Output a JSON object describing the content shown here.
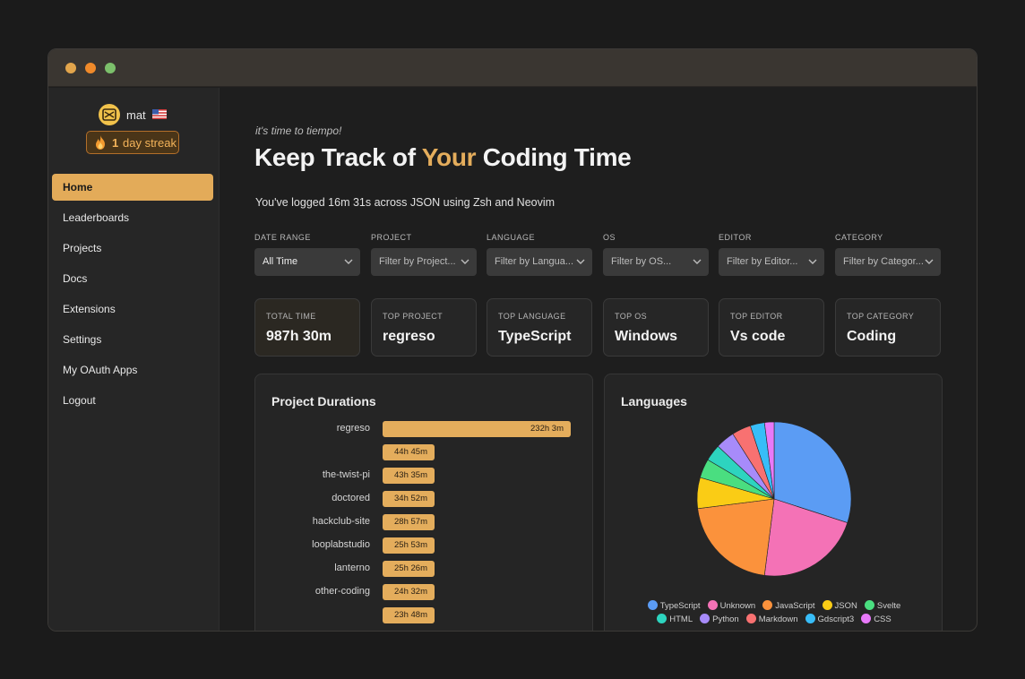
{
  "window": {
    "controls": [
      "close",
      "minimize",
      "maximize"
    ]
  },
  "sidebar": {
    "user": {
      "name": "mat",
      "flag": "us-flag-icon"
    },
    "streak": {
      "count": "1",
      "text": "day streak"
    },
    "nav": [
      {
        "label": "Home",
        "active": true
      },
      {
        "label": "Leaderboards"
      },
      {
        "label": "Projects"
      },
      {
        "label": "Docs"
      },
      {
        "label": "Extensions"
      },
      {
        "label": "Settings"
      },
      {
        "label": "My OAuth Apps"
      },
      {
        "label": "Logout"
      }
    ]
  },
  "main": {
    "tagline": "it's time to tiempo!",
    "headline": {
      "before": "Keep Track of",
      "accent": "Your",
      "after": "Coding Time"
    },
    "summary": "You've logged 16m 31s across JSON using Zsh and Neovim",
    "filters": [
      {
        "label": "DATE RANGE",
        "value": "All Time"
      },
      {
        "label": "PROJECT",
        "placeholder": "Filter by Project..."
      },
      {
        "label": "LANGUAGE",
        "placeholder": "Filter by Langua..."
      },
      {
        "label": "OS",
        "placeholder": "Filter by OS..."
      },
      {
        "label": "EDITOR",
        "placeholder": "Filter by Editor..."
      },
      {
        "label": "CATEGORY",
        "placeholder": "Filter by Categor..."
      }
    ],
    "stats": [
      {
        "label": "TOTAL TIME",
        "value": "987h 30m"
      },
      {
        "label": "TOP PROJECT",
        "value": "regreso"
      },
      {
        "label": "TOP LANGUAGE",
        "value": "TypeScript"
      },
      {
        "label": "TOP OS",
        "value": "Windows"
      },
      {
        "label": "TOP EDITOR",
        "value": "Vs code"
      },
      {
        "label": "TOP CATEGORY",
        "value": "Coding"
      }
    ]
  },
  "chart_data": [
    {
      "type": "bar",
      "title": "Project Durations",
      "orientation": "horizontal",
      "categories": [
        "regreso",
        "",
        "the-twist-pi",
        "doctored",
        "hackclub-site",
        "looplabstudio",
        "lanterno",
        "other-coding",
        ""
      ],
      "values": [
        232.05,
        44.75,
        43.583,
        34.867,
        28.95,
        25.883,
        25.433,
        24.533,
        23.8
      ],
      "value_labels": [
        "232h 3m",
        "44h 45m",
        "43h 35m",
        "34h 52m",
        "28h 57m",
        "25h 53m",
        "25h 26m",
        "24h 32m",
        "23h 48m"
      ],
      "units": "hours",
      "color": "#e4ad5c"
    },
    {
      "type": "pie",
      "title": "Languages",
      "legend_placement": "bottom",
      "series": [
        {
          "name": "TypeScript",
          "value": 30.0,
          "color": "#5b9cf4"
        },
        {
          "name": "Unknown",
          "value": 22.0,
          "color": "#f472b6"
        },
        {
          "name": "JavaScript",
          "value": 21.0,
          "color": "#fb923c"
        },
        {
          "name": "JSON",
          "value": 6.5,
          "color": "#facc15"
        },
        {
          "name": "Svelte",
          "value": 4.0,
          "color": "#4ade80"
        },
        {
          "name": "HTML",
          "value": 3.5,
          "color": "#2dd4bf"
        },
        {
          "name": "Python",
          "value": 4.0,
          "color": "#a78bfa"
        },
        {
          "name": "Markdown",
          "value": 4.0,
          "color": "#f87171"
        },
        {
          "name": "Gdscript3",
          "value": 3.0,
          "color": "#38bdf8"
        },
        {
          "name": "CSS",
          "value": 2.0,
          "color": "#e879f9"
        }
      ]
    }
  ]
}
